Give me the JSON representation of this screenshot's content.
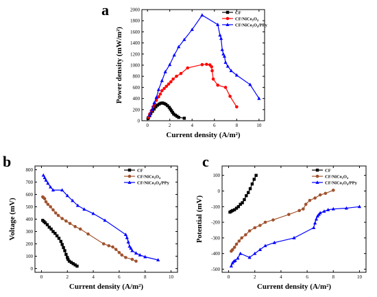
{
  "chart_data": [
    {
      "panel_label": "a",
      "type": "line",
      "xlabel": "Current density (A/m²)",
      "ylabel": "Power density (mW/m²)",
      "xlim": [
        -0.5,
        10.5
      ],
      "ylim": [
        0,
        2000
      ],
      "xticks": [
        "0",
        "2",
        "4",
        "6",
        "8",
        "10"
      ],
      "yticks": [
        "0",
        "200",
        "400",
        "600",
        "800",
        "1000",
        "1200",
        "1400",
        "1600",
        "1800",
        "2000"
      ],
      "legend_position": "top-right",
      "series": [
        {
          "name": "CF",
          "color": "#000000",
          "marker": "square",
          "x": [
            0.05,
            0.1,
            0.2,
            0.3,
            0.45,
            0.6,
            0.75,
            0.9,
            1.05,
            1.2,
            1.35,
            1.5,
            1.65,
            1.8,
            1.95,
            2.05,
            2.15,
            2.25,
            2.35,
            2.5,
            2.65,
            2.8,
            3.3
          ],
          "y": [
            40,
            60,
            90,
            130,
            170,
            210,
            250,
            280,
            300,
            315,
            320,
            310,
            295,
            270,
            240,
            210,
            180,
            150,
            120,
            100,
            80,
            60,
            45
          ]
        },
        {
          "name": "CF/NiCo₂O₄",
          "color": "#ff0000",
          "marker": "circle",
          "x": [
            0.1,
            0.2,
            0.35,
            0.5,
            0.65,
            0.8,
            1.0,
            1.15,
            1.3,
            1.5,
            1.7,
            1.9,
            2.1,
            2.3,
            2.6,
            3.0,
            3.6,
            4.9,
            5.3,
            5.6,
            5.75,
            5.8,
            5.9,
            6.3,
            7.0,
            7.4,
            8.0
          ],
          "y": [
            60,
            120,
            180,
            250,
            300,
            370,
            430,
            480,
            540,
            580,
            620,
            660,
            700,
            750,
            800,
            850,
            950,
            1010,
            1015,
            1005,
            970,
            900,
            750,
            640,
            600,
            440,
            250
          ]
        },
        {
          "name": "CF/NiCo₂O₄/PPy",
          "color": "#0000ff",
          "marker": "triangle",
          "x": [
            0.2,
            0.4,
            0.6,
            0.8,
            1.0,
            1.3,
            1.6,
            2.0,
            2.4,
            2.8,
            3.3,
            4.0,
            4.9,
            6.3,
            6.5,
            6.6,
            6.7,
            6.8,
            6.9,
            7.0,
            7.2,
            7.5,
            8.0,
            9.2,
            10.0
          ],
          "y": [
            100,
            200,
            320,
            420,
            560,
            720,
            880,
            1010,
            1180,
            1330,
            1460,
            1640,
            1900,
            1730,
            1540,
            1480,
            1280,
            1200,
            1160,
            1050,
            980,
            900,
            820,
            650,
            400
          ]
        }
      ]
    },
    {
      "panel_label": "b",
      "type": "line",
      "xlabel": "Current density (A/m²)",
      "ylabel": "Voltage (mV)",
      "xlim": [
        -0.5,
        10.5
      ],
      "ylim": [
        -30,
        830
      ],
      "xticks": [
        "0",
        "2",
        "4",
        "6",
        "8",
        "10"
      ],
      "yticks": [
        "0",
        "100",
        "200",
        "300",
        "400",
        "500",
        "600",
        "700",
        "800"
      ],
      "legend_position": "top-right",
      "series": [
        {
          "name": "CF",
          "color": "#000000",
          "marker": "square",
          "x": [
            0.1,
            0.2,
            0.3,
            0.45,
            0.6,
            0.75,
            0.9,
            1.05,
            1.2,
            1.35,
            1.5,
            1.6,
            1.7,
            1.8,
            1.9,
            2.0,
            2.05,
            2.15,
            2.3,
            2.45,
            2.6,
            2.75
          ],
          "y": [
            390,
            380,
            370,
            355,
            335,
            320,
            300,
            285,
            265,
            245,
            220,
            195,
            170,
            145,
            115,
            90,
            75,
            60,
            50,
            40,
            30,
            20
          ]
        },
        {
          "name": "CF/NiCo₂O₄",
          "color": "#a0522d",
          "marker": "circle",
          "x": [
            0.1,
            0.15,
            0.25,
            0.35,
            0.5,
            0.7,
            0.9,
            1.1,
            1.3,
            1.6,
            1.9,
            2.2,
            2.6,
            3.0,
            3.6,
            4.8,
            5.2,
            5.5,
            5.75,
            6.0,
            6.2,
            6.5,
            7.0,
            7.3
          ],
          "y": [
            580,
            575,
            565,
            540,
            520,
            500,
            475,
            450,
            430,
            405,
            385,
            365,
            340,
            320,
            280,
            200,
            185,
            175,
            155,
            130,
            110,
            90,
            75,
            60
          ]
        },
        {
          "name": "CF/NiCo₂O₄/PPy",
          "color": "#0000ff",
          "marker": "triangle",
          "x": [
            0.15,
            0.25,
            0.35,
            0.5,
            0.7,
            0.9,
            1.6,
            2.0,
            2.4,
            2.8,
            3.3,
            4.0,
            4.9,
            6.5,
            6.6,
            6.7,
            6.8,
            6.9,
            7.0,
            7.3,
            7.6,
            8.0,
            9.0
          ],
          "y": [
            755,
            735,
            715,
            690,
            660,
            635,
            635,
            590,
            550,
            510,
            480,
            445,
            390,
            275,
            250,
            215,
            180,
            165,
            145,
            125,
            110,
            95,
            70
          ]
        }
      ]
    },
    {
      "panel_label": "c",
      "type": "line",
      "xlabel": "Current density (A/m²)",
      "ylabel": "Potential (mV)",
      "xlim": [
        -0.5,
        10.5
      ],
      "ylim": [
        -520,
        160
      ],
      "xticks": [
        "0",
        "2",
        "4",
        "6",
        "8",
        "10"
      ],
      "yticks": [
        "-500",
        "-400",
        "-300",
        "-200",
        "-100",
        "0",
        "100"
      ],
      "legend_position": "top-right",
      "series": [
        {
          "name": "CF",
          "color": "#000000",
          "marker": "square",
          "x": [
            0.1,
            0.2,
            0.3,
            0.45,
            0.6,
            0.75,
            0.9,
            1.05,
            1.2,
            1.35,
            1.5,
            1.65,
            1.8,
            1.95,
            2.1
          ],
          "y": [
            -135,
            -130,
            -125,
            -120,
            -110,
            -100,
            -85,
            -75,
            -55,
            -30,
            -10,
            15,
            45,
            75,
            100
          ]
        },
        {
          "name": "CF/NiCo₂O₄",
          "color": "#a0522d",
          "marker": "circle",
          "x": [
            0.2,
            0.3,
            0.45,
            0.6,
            0.8,
            1.0,
            1.3,
            1.6,
            2.0,
            2.4,
            2.8,
            3.4,
            4.6,
            5.4,
            5.7,
            5.9,
            6.2,
            6.6,
            7.0,
            7.4,
            8.0
          ],
          "y": [
            -385,
            -375,
            -360,
            -340,
            -320,
            -300,
            -280,
            -255,
            -235,
            -220,
            -200,
            -185,
            -150,
            -125,
            -115,
            -85,
            -60,
            -45,
            -25,
            -15,
            5
          ]
        },
        {
          "name": "CF/NiCo₂O₄/PPy",
          "color": "#0000ff",
          "marker": "triangle",
          "x": [
            0.2,
            0.3,
            0.4,
            0.5,
            0.7,
            0.9,
            1.6,
            2.0,
            2.4,
            2.8,
            3.5,
            5.0,
            6.5,
            6.6,
            6.7,
            6.8,
            6.9,
            7.0,
            7.3,
            7.6,
            8.0,
            9.0,
            10.0
          ],
          "y": [
            -480,
            -460,
            -450,
            -445,
            -430,
            -400,
            -425,
            -400,
            -375,
            -350,
            -330,
            -300,
            -235,
            -205,
            -180,
            -160,
            -150,
            -140,
            -130,
            -120,
            -115,
            -110,
            -100
          ]
        }
      ]
    }
  ]
}
